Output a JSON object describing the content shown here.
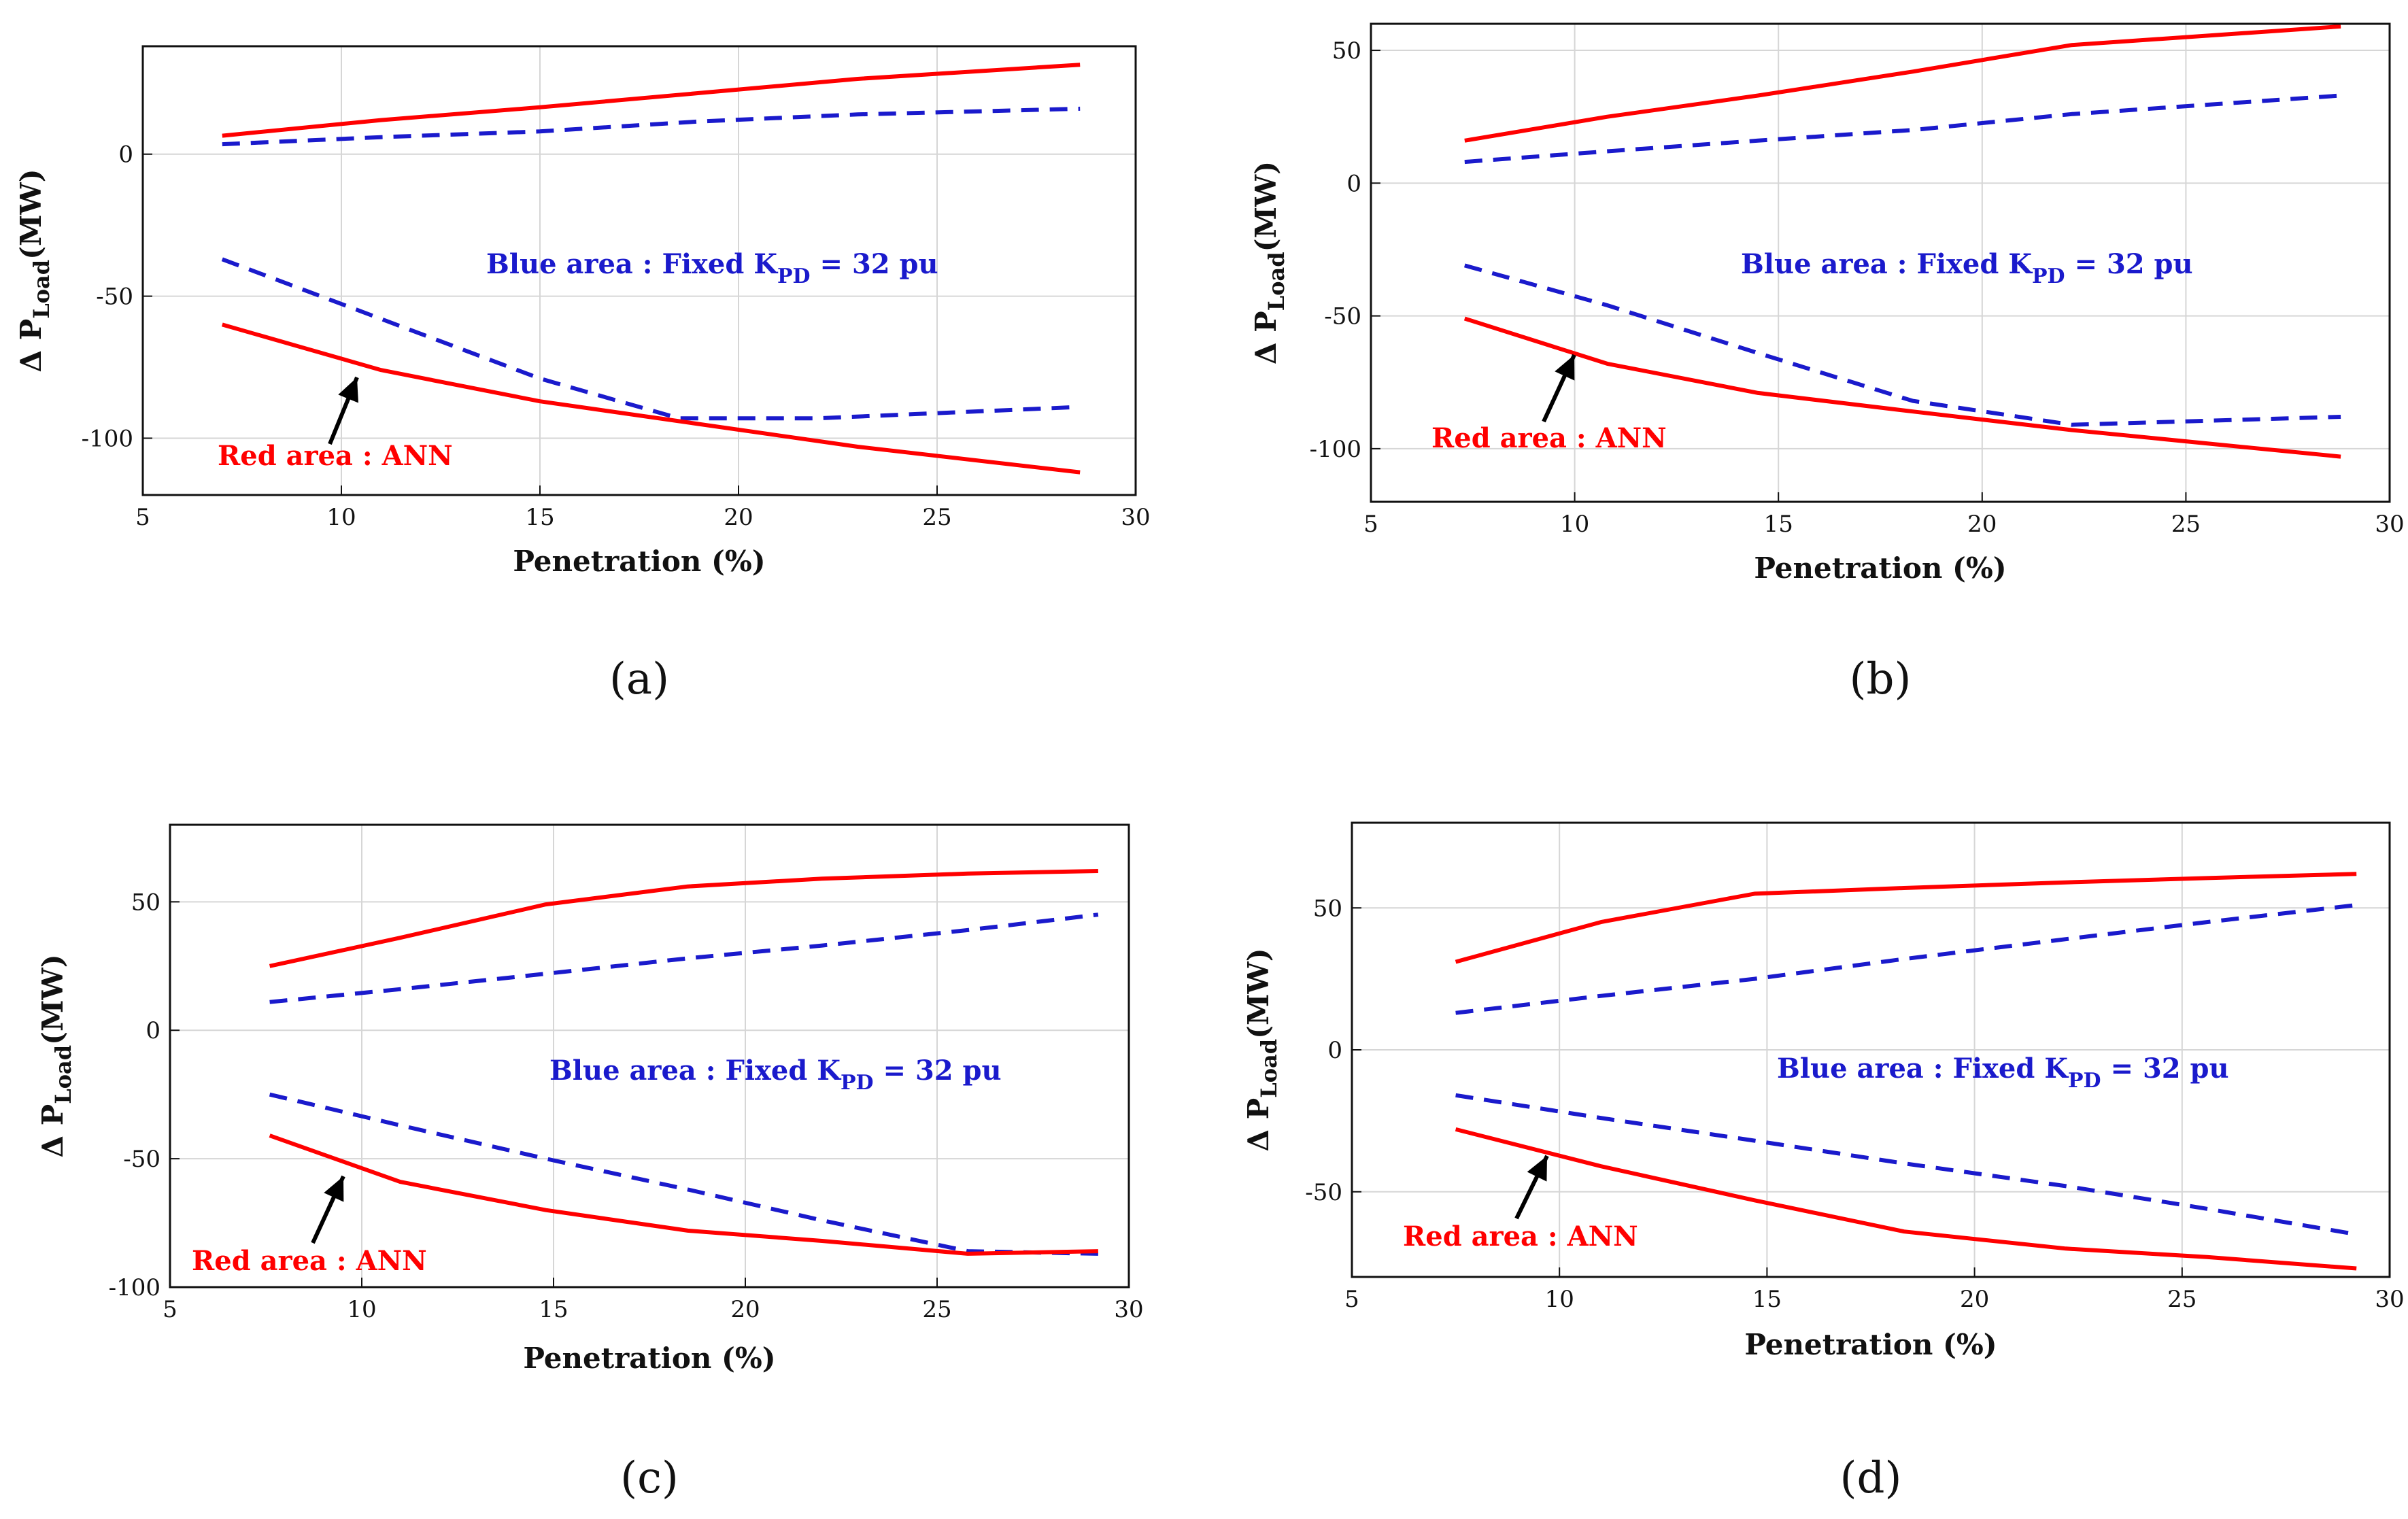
{
  "colors": {
    "red": "#ff0000",
    "blue": "#1a1acc",
    "grid": "#d6d6d6",
    "axis": "#111111",
    "arrow": "#000000"
  },
  "chart_data": [
    {
      "type": "line",
      "panel_label": "(a)",
      "xlabel": "Penetration (%)",
      "ylabel": {
        "prefix": "Δ P",
        "sub": "Load",
        "suffix": "(MW)"
      },
      "xlim": [
        5,
        30
      ],
      "ylim": [
        -120,
        38
      ],
      "xticks": [
        5,
        10,
        15,
        20,
        25,
        30
      ],
      "yticks": [
        -100,
        -50,
        0
      ],
      "grid": true,
      "blue_annotation": {
        "text": "Blue area : Fixed K",
        "sub": "PD",
        "suffix": " = 32 pu"
      },
      "red_annotation": {
        "text": "Red area : ANN"
      },
      "series": [
        {
          "name": "Red area (ANN) upper",
          "style": "solid",
          "color": "red",
          "x": [
            7,
            11,
            15,
            19,
            23,
            28.6
          ],
          "y": [
            6.5,
            12,
            16.5,
            21.5,
            26.5,
            31.5
          ]
        },
        {
          "name": "Blue area (Fixed K_PD) upper",
          "style": "dashed",
          "color": "blue",
          "x": [
            7,
            11,
            15,
            19,
            23,
            28.6
          ],
          "y": [
            3.5,
            6,
            8,
            11.5,
            14,
            16
          ]
        },
        {
          "name": "Blue area (Fixed K_PD) lower",
          "style": "dashed",
          "color": "blue",
          "x": [
            7,
            11,
            15,
            18.5,
            22,
            28.6
          ],
          "y": [
            -37,
            -58,
            -79,
            -93,
            -93,
            -89
          ]
        },
        {
          "name": "Red area (ANN) lower",
          "style": "solid",
          "color": "red",
          "x": [
            7,
            11,
            15,
            19,
            23,
            28.6
          ],
          "y": [
            -60,
            -76,
            -87,
            -95,
            -103,
            -112
          ]
        }
      ]
    },
    {
      "type": "line",
      "panel_label": "(b)",
      "xlabel": "Penetration (%)",
      "ylabel": {
        "prefix": "Δ P",
        "sub": "Load",
        "suffix": "(MW)"
      },
      "xlim": [
        5,
        30
      ],
      "ylim": [
        -120,
        60
      ],
      "xticks": [
        5,
        10,
        15,
        20,
        25,
        30
      ],
      "yticks": [
        -100,
        -50,
        0,
        50
      ],
      "grid": true,
      "blue_annotation": {
        "text": "Blue area : Fixed K",
        "sub": "PD",
        "suffix": " = 32 pu"
      },
      "red_annotation": {
        "text": "Red area : ANN"
      },
      "series": [
        {
          "name": "Red area (ANN) upper",
          "style": "solid",
          "color": "red",
          "x": [
            7.3,
            10.8,
            14.5,
            18.3,
            22.2,
            28.8
          ],
          "y": [
            16,
            25,
            33,
            42,
            52,
            59
          ]
        },
        {
          "name": "Blue area (Fixed K_PD) upper",
          "style": "dashed",
          "color": "blue",
          "x": [
            7.3,
            10.8,
            14.5,
            18.3,
            22.2,
            28.8
          ],
          "y": [
            8,
            12,
            16,
            20,
            26,
            33
          ]
        },
        {
          "name": "Blue area (Fixed K_PD) lower",
          "style": "dashed",
          "color": "blue",
          "x": [
            7.3,
            10.8,
            14.5,
            18.3,
            22.2,
            28.8
          ],
          "y": [
            -31,
            -46,
            -64,
            -82,
            -91,
            -88
          ]
        },
        {
          "name": "Red area (ANN) lower",
          "style": "solid",
          "color": "red",
          "x": [
            7.3,
            10.8,
            14.5,
            18.3,
            22.2,
            28.8
          ],
          "y": [
            -51,
            -68,
            -79,
            -86,
            -93,
            -103
          ]
        }
      ]
    },
    {
      "type": "line",
      "panel_label": "(c)",
      "xlabel": "Penetration (%)",
      "ylabel": {
        "prefix": "Δ P",
        "sub": "Load",
        "suffix": "(MW)"
      },
      "xlim": [
        5,
        30
      ],
      "ylim": [
        -100,
        80
      ],
      "xticks": [
        5,
        10,
        15,
        20,
        25,
        30
      ],
      "yticks": [
        -100,
        -50,
        0,
        50
      ],
      "grid": true,
      "blue_annotation": {
        "text": "Blue area : Fixed K",
        "sub": "PD",
        "suffix": " = 32 pu"
      },
      "red_annotation": {
        "text": "Red area : ANN"
      },
      "series": [
        {
          "name": "Red area (ANN) upper",
          "style": "solid",
          "color": "red",
          "x": [
            7.6,
            11,
            14.8,
            18.5,
            22,
            25.8,
            29.2
          ],
          "y": [
            25,
            36,
            49,
            56,
            59,
            61,
            62
          ]
        },
        {
          "name": "Blue area (Fixed K_PD) upper",
          "style": "dashed",
          "color": "blue",
          "x": [
            7.6,
            11,
            14.8,
            18.5,
            22,
            25.8,
            29.2
          ],
          "y": [
            11,
            16,
            22,
            28,
            33,
            39,
            45
          ]
        },
        {
          "name": "Blue area (Fixed K_PD) lower",
          "style": "dashed",
          "color": "blue",
          "x": [
            7.6,
            11,
            14.8,
            18.5,
            22,
            25.8,
            29.2
          ],
          "y": [
            -25,
            -37,
            -50,
            -62,
            -74,
            -86,
            -87
          ]
        },
        {
          "name": "Red area (ANN) lower",
          "style": "solid",
          "color": "red",
          "x": [
            7.6,
            11,
            14.8,
            18.5,
            22,
            25.8,
            29.2
          ],
          "y": [
            -41,
            -59,
            -70,
            -78,
            -82,
            -87,
            -86
          ]
        }
      ]
    },
    {
      "type": "line",
      "panel_label": "(d)",
      "xlabel": "Penetration (%)",
      "ylabel": {
        "prefix": "Δ P",
        "sub": "Load",
        "suffix": "(MW)"
      },
      "xlim": [
        5,
        30
      ],
      "ylim": [
        -80,
        80
      ],
      "xticks": [
        5,
        10,
        15,
        20,
        25,
        30
      ],
      "yticks": [
        -50,
        0,
        50
      ],
      "grid": true,
      "blue_annotation": {
        "text": "Blue area : Fixed K",
        "sub": "PD",
        "suffix": " = 32 pu"
      },
      "red_annotation": {
        "text": "Red area : ANN"
      },
      "series": [
        {
          "name": "Red area (ANN) upper",
          "style": "solid",
          "color": "red",
          "x": [
            7.5,
            11,
            14.7,
            18.3,
            22.2,
            25.6,
            29.2
          ],
          "y": [
            31,
            45,
            55,
            57,
            59,
            60.5,
            62
          ]
        },
        {
          "name": "Blue area (Fixed K_PD) upper",
          "style": "dashed",
          "color": "blue",
          "x": [
            7.5,
            11,
            14.7,
            18.3,
            22.2,
            25.6,
            29.2
          ],
          "y": [
            13,
            19,
            25,
            32,
            39,
            45,
            51
          ]
        },
        {
          "name": "Blue area (Fixed K_PD) lower",
          "style": "dashed",
          "color": "blue",
          "x": [
            7.5,
            11,
            14.7,
            18.3,
            22.2,
            25.6,
            29.2
          ],
          "y": [
            -16,
            -24,
            -32,
            -40,
            -48,
            -56,
            -65
          ]
        },
        {
          "name": "Red area (ANN) lower",
          "style": "solid",
          "color": "red",
          "x": [
            7.5,
            11,
            14.7,
            18.3,
            22.2,
            25.6,
            29.2
          ],
          "y": [
            -28,
            -41,
            -53,
            -64,
            -70,
            -73,
            -77
          ]
        }
      ]
    }
  ]
}
